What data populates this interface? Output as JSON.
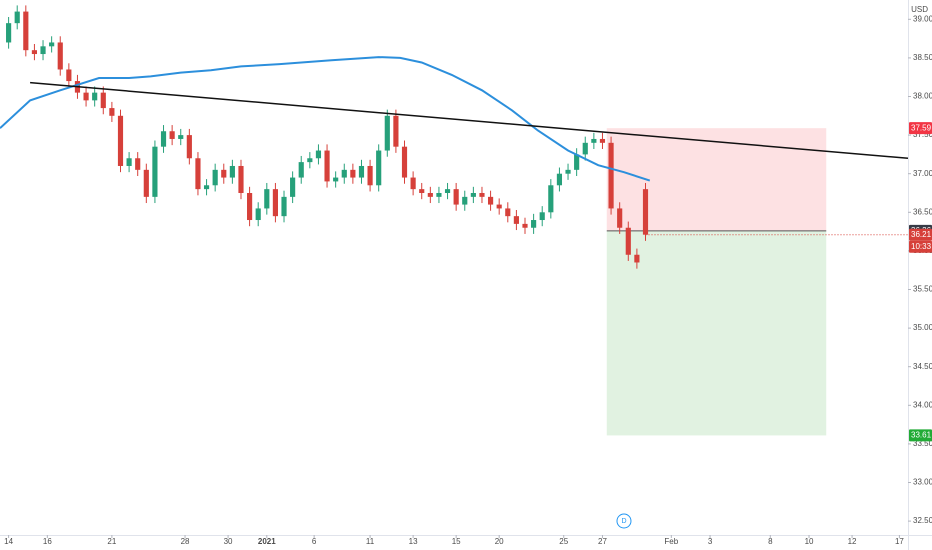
{
  "chart_data": {
    "type": "candlestick",
    "currency": "USD",
    "x": [
      0,
      2,
      4,
      6,
      8,
      10,
      12,
      14,
      16,
      18,
      20,
      22,
      24,
      26,
      28,
      30,
      32,
      34,
      36,
      38,
      40,
      42,
      44,
      46,
      48,
      50,
      52,
      54,
      56,
      58,
      60,
      62,
      64,
      66,
      68,
      70,
      72,
      74,
      76,
      78,
      80,
      82,
      84,
      86,
      88,
      90,
      92,
      94,
      96,
      98,
      100,
      102,
      104,
      106,
      108,
      110,
      112,
      114,
      116,
      118,
      120,
      122,
      124,
      126,
      128,
      130,
      132,
      134,
      136,
      138,
      140,
      142,
      144,
      146,
      148
    ],
    "open": [
      38.7,
      38.95,
      39.1,
      38.6,
      38.55,
      38.65,
      38.7,
      38.35,
      38.2,
      38.05,
      37.95,
      38.05,
      37.85,
      37.75,
      37.1,
      37.2,
      37.05,
      36.7,
      37.35,
      37.55,
      37.45,
      37.5,
      37.2,
      36.8,
      36.85,
      37.05,
      36.95,
      37.1,
      36.75,
      36.4,
      36.55,
      36.8,
      36.45,
      36.7,
      36.95,
      37.15,
      37.2,
      37.3,
      36.9,
      36.95,
      37.05,
      36.95,
      37.1,
      36.85,
      37.3,
      37.75,
      37.35,
      36.95,
      36.8,
      36.75,
      36.7,
      36.75,
      36.8,
      36.6,
      36.7,
      36.75,
      36.7,
      36.6,
      36.55,
      36.45,
      36.35,
      36.3,
      36.4,
      36.5,
      36.85,
      37.0,
      37.05,
      37.25,
      37.4,
      37.45,
      37.4,
      36.55,
      36.3,
      35.95,
      36.8
    ],
    "high": [
      39.03,
      39.18,
      39.18,
      38.68,
      38.73,
      38.78,
      38.78,
      38.43,
      38.28,
      38.13,
      38.13,
      38.13,
      37.93,
      37.83,
      37.28,
      37.28,
      37.13,
      37.43,
      37.63,
      37.63,
      37.58,
      37.58,
      37.28,
      36.93,
      37.13,
      37.13,
      37.18,
      37.18,
      36.83,
      36.63,
      36.88,
      36.88,
      36.78,
      37.03,
      37.23,
      37.28,
      37.38,
      37.38,
      37.03,
      37.13,
      37.13,
      37.18,
      37.18,
      37.38,
      37.83,
      37.83,
      37.43,
      37.03,
      36.88,
      36.83,
      36.83,
      36.88,
      36.88,
      36.78,
      36.83,
      36.83,
      36.78,
      36.68,
      36.63,
      36.53,
      36.43,
      36.48,
      36.58,
      36.93,
      37.08,
      37.13,
      37.33,
      37.48,
      37.53,
      37.53,
      37.48,
      36.63,
      36.38,
      36.03,
      36.88
    ],
    "low": [
      38.62,
      38.87,
      38.52,
      38.47,
      38.47,
      38.57,
      38.27,
      38.12,
      37.97,
      37.87,
      37.87,
      37.77,
      37.67,
      37.02,
      37.02,
      36.97,
      36.62,
      36.62,
      37.27,
      37.37,
      37.37,
      37.12,
      36.72,
      36.72,
      36.77,
      36.87,
      36.87,
      36.67,
      36.32,
      36.32,
      36.47,
      36.37,
      36.37,
      36.62,
      36.87,
      37.07,
      37.12,
      36.82,
      36.82,
      36.87,
      36.87,
      36.87,
      36.77,
      36.77,
      37.22,
      37.27,
      36.87,
      36.72,
      36.67,
      36.62,
      36.62,
      36.67,
      36.52,
      36.52,
      36.62,
      36.62,
      36.52,
      36.47,
      36.37,
      36.27,
      36.22,
      36.22,
      36.32,
      36.42,
      36.77,
      36.92,
      36.97,
      37.17,
      37.32,
      37.32,
      36.47,
      36.22,
      35.87,
      35.77,
      36.13
    ],
    "close": [
      38.95,
      39.1,
      38.6,
      38.55,
      38.65,
      38.7,
      38.35,
      38.2,
      38.05,
      37.95,
      38.05,
      37.85,
      37.75,
      37.1,
      37.2,
      37.05,
      36.7,
      37.35,
      37.55,
      37.45,
      37.5,
      37.2,
      36.8,
      36.85,
      37.05,
      36.95,
      37.1,
      36.75,
      36.4,
      36.55,
      36.8,
      36.45,
      36.7,
      36.95,
      37.15,
      37.2,
      37.3,
      36.9,
      36.95,
      37.05,
      36.95,
      37.1,
      36.85,
      37.3,
      37.75,
      37.35,
      36.95,
      36.8,
      36.75,
      36.7,
      36.75,
      36.8,
      36.6,
      36.7,
      36.75,
      36.7,
      36.6,
      36.55,
      36.45,
      36.35,
      36.3,
      36.4,
      36.5,
      36.85,
      37.0,
      37.05,
      37.25,
      37.4,
      37.45,
      37.4,
      36.55,
      36.3,
      35.95,
      35.85,
      36.21
    ],
    "up_color": "#26a07a",
    "down_color": "#d6403a",
    "sma": {
      "color": "#2c8fdc",
      "x": [
        -2,
        5,
        12,
        21,
        28,
        33,
        40,
        47,
        54,
        63,
        75,
        86,
        91,
        96,
        103,
        110,
        117,
        123,
        130,
        137,
        143,
        149
      ],
      "values": [
        37.59,
        37.95,
        38.08,
        38.24,
        38.24,
        38.26,
        38.31,
        38.34,
        38.39,
        38.42,
        38.47,
        38.51,
        38.5,
        38.44,
        38.28,
        38.08,
        37.82,
        37.56,
        37.3,
        37.11,
        37.02,
        36.91
      ]
    },
    "trendline": {
      "color": "#111111",
      "x": [
        5,
        209
      ],
      "values": [
        38.18,
        37.2
      ]
    },
    "position": {
      "start": 139,
      "end": 190,
      "stop": 37.59,
      "entry": 36.26,
      "target": 33.61,
      "stop_color": "#f23645",
      "target_color": "#4caf50",
      "entry_color": "#555555"
    },
    "countdown": "10:33",
    "event_marker": {
      "x": 143,
      "label": "D",
      "color": "#2196f3"
    },
    "xlim": [
      -2,
      209
    ],
    "ylim": [
      32.32,
      39.25
    ],
    "xticks": [
      {
        "value": 0,
        "label": "14"
      },
      {
        "value": 9,
        "label": "16"
      },
      {
        "value": 24,
        "label": "21"
      },
      {
        "value": 41,
        "label": "28"
      },
      {
        "value": 51,
        "label": "30"
      },
      {
        "value": 60,
        "label": "2021"
      },
      {
        "value": 71,
        "label": "6"
      },
      {
        "value": 84,
        "label": "11"
      },
      {
        "value": 94,
        "label": "13"
      },
      {
        "value": 104,
        "label": "15"
      },
      {
        "value": 114,
        "label": "20"
      },
      {
        "value": 129,
        "label": "25"
      },
      {
        "value": 138,
        "label": "27"
      },
      {
        "value": 154,
        "label": "Feb"
      },
      {
        "value": 163,
        "label": "3"
      },
      {
        "value": 177,
        "label": "8"
      },
      {
        "value": 186,
        "label": "10"
      },
      {
        "value": 196,
        "label": "12"
      },
      {
        "value": 207,
        "label": "17"
      }
    ],
    "yticks": [
      {
        "value": 32.5,
        "label": "32.50"
      },
      {
        "value": 33,
        "label": "33.00"
      },
      {
        "value": 33.5,
        "label": "33.50"
      },
      {
        "value": 34,
        "label": "34.00"
      },
      {
        "value": 34.5,
        "label": "34.50"
      },
      {
        "value": 35,
        "label": "35.00"
      },
      {
        "value": 35.5,
        "label": "35.50"
      },
      {
        "value": 36,
        "label": "36.00"
      },
      {
        "value": 36.5,
        "label": "36.50"
      },
      {
        "value": 37,
        "label": "37.00"
      },
      {
        "value": 37.5,
        "label": "37.50"
      },
      {
        "value": 38,
        "label": "38.00"
      },
      {
        "value": 38.5,
        "label": "38.50"
      },
      {
        "value": 39,
        "label": "39.00"
      }
    ]
  }
}
